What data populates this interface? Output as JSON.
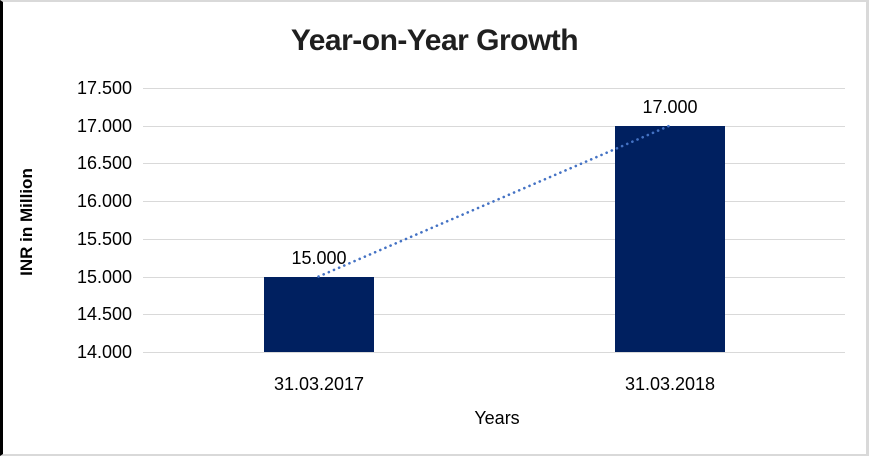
{
  "chart_data": {
    "type": "bar",
    "title": "Year-on-Year Growth",
    "xlabel": "Years",
    "ylabel": "INR in Million",
    "categories": [
      "31.03.2017",
      "31.03.2018"
    ],
    "values": [
      15000,
      17000
    ],
    "value_labels": [
      "15.000",
      "17.000"
    ],
    "ylim": [
      14000,
      17500
    ],
    "ytick_step": 500,
    "ytick_labels": [
      "14.000",
      "14.500",
      "15.000",
      "15.500",
      "16.000",
      "16.500",
      "17.000",
      "17.500"
    ],
    "grid": true,
    "legend": "none",
    "bar_color": "#002060",
    "gridline_color": "#d9d9d9",
    "trendline": {
      "style": "dotted",
      "color": "#4472c4",
      "from_value": 15000,
      "to_value": 17000
    }
  }
}
